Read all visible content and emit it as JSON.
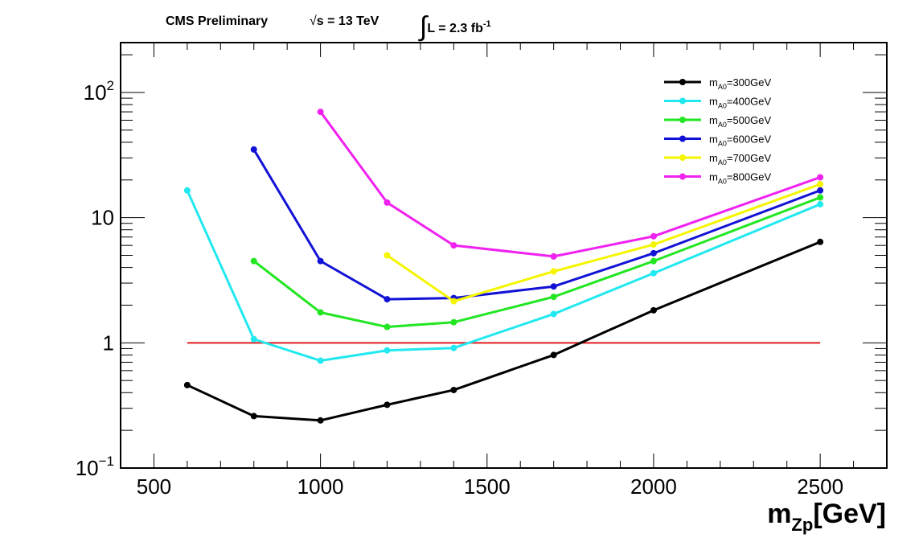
{
  "header": {
    "experiment": "CMS Preliminary",
    "sqrt_s": "s = 13 TeV",
    "lumi_prefix": "L = 2.3 fb",
    "lumi_exp": "-1"
  },
  "chart_data": {
    "type": "line",
    "xlabel_main": "m",
    "xlabel_sub": "Zp",
    "xlabel_unit": "[GeV]",
    "ylabel": "",
    "xlim": [
      400,
      2700
    ],
    "ylim": [
      0.1,
      250
    ],
    "yscale": "log",
    "grid": false,
    "legend_placement": "top-right",
    "x_ticks": [
      {
        "value": 500,
        "label": "500"
      },
      {
        "value": 1000,
        "label": "1000"
      },
      {
        "value": 1500,
        "label": "1500"
      },
      {
        "value": 2000,
        "label": "2000"
      },
      {
        "value": 2500,
        "label": "2500"
      }
    ],
    "y_ticks": [
      {
        "value": 0.1,
        "label": "10",
        "exp": "−1"
      },
      {
        "value": 1,
        "label": "1",
        "exp": ""
      },
      {
        "value": 10,
        "label": "10",
        "exp": ""
      },
      {
        "value": 100,
        "label": "10",
        "exp": "2"
      }
    ],
    "reference_line": {
      "y": 1,
      "x_start": 600,
      "x_end": 2500,
      "color": "#e41a1c"
    },
    "series": [
      {
        "name": "m",
        "name_sub": "A0",
        "name_rest": "=300GeV",
        "color": "#000000",
        "x": [
          600,
          800,
          1000,
          1200,
          1400,
          1700,
          2000,
          2500
        ],
        "y": [
          0.46,
          0.26,
          0.24,
          0.32,
          0.42,
          0.8,
          1.82,
          6.4
        ]
      },
      {
        "name": "m",
        "name_sub": "A0",
        "name_rest": "=400GeV",
        "color": "#22e8f0",
        "x": [
          600,
          800,
          1000,
          1200,
          1400,
          1700,
          2000,
          2500
        ],
        "y": [
          16.5,
          1.07,
          0.72,
          0.87,
          0.91,
          1.7,
          3.6,
          12.8
        ]
      },
      {
        "name": "m",
        "name_sub": "A0",
        "name_rest": "=500GeV",
        "color": "#22e622",
        "x": [
          800,
          1000,
          1200,
          1400,
          1700,
          2000,
          2500
        ],
        "y": [
          4.5,
          1.75,
          1.34,
          1.46,
          2.33,
          4.5,
          14.5
        ]
      },
      {
        "name": "m",
        "name_sub": "A0",
        "name_rest": "=600GeV",
        "color": "#1212d6",
        "x": [
          800,
          1000,
          1200,
          1400,
          1700,
          2000,
          2500
        ],
        "y": [
          35,
          4.5,
          2.23,
          2.28,
          2.82,
          5.2,
          16.5
        ]
      },
      {
        "name": "m",
        "name_sub": "A0",
        "name_rest": "=700GeV",
        "color": "#f5f500",
        "x": [
          1200,
          1400,
          1700,
          2000,
          2500
        ],
        "y": [
          5.0,
          2.15,
          3.72,
          6.1,
          18.5
        ]
      },
      {
        "name": "m",
        "name_sub": "A0",
        "name_rest": "=800GeV",
        "color": "#f022f0",
        "x": [
          1000,
          1200,
          1400,
          1700,
          2000,
          2500
        ],
        "y": [
          70,
          13.2,
          6.0,
          4.9,
          7.1,
          21
        ]
      }
    ]
  }
}
